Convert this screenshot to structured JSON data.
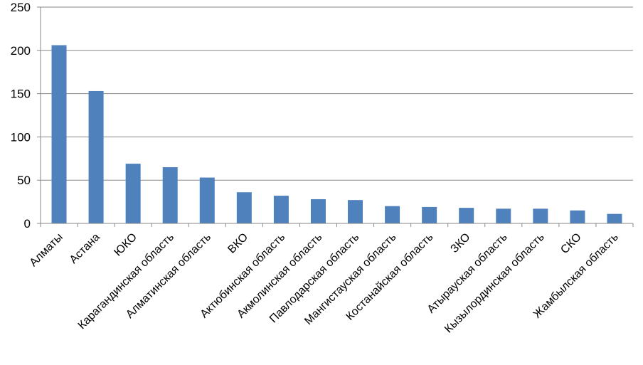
{
  "chart_data": {
    "type": "bar",
    "title": "",
    "xlabel": "",
    "ylabel": "",
    "ylim": [
      0,
      250
    ],
    "yticks": [
      0,
      50,
      100,
      150,
      200,
      250
    ],
    "grid": true,
    "legend": "none",
    "bar_color": "#4F81BD",
    "categories": [
      "Алматы",
      "Астана",
      "ЮКО",
      "Карагандинская  область",
      "Алматинская  область",
      "ВКО",
      "Актюбинская  область",
      "Акмолинская  область",
      "Павлодарская  область",
      "Мангистауская  область",
      "Костанайская  область",
      "ЗКО",
      "Атырауская  область",
      "Кызылординская  область",
      "СКО",
      "Жамбылская  область"
    ],
    "values": [
      206,
      153,
      69,
      65,
      53,
      36,
      32,
      28,
      27,
      20,
      19,
      18,
      17,
      17,
      15,
      11
    ]
  }
}
